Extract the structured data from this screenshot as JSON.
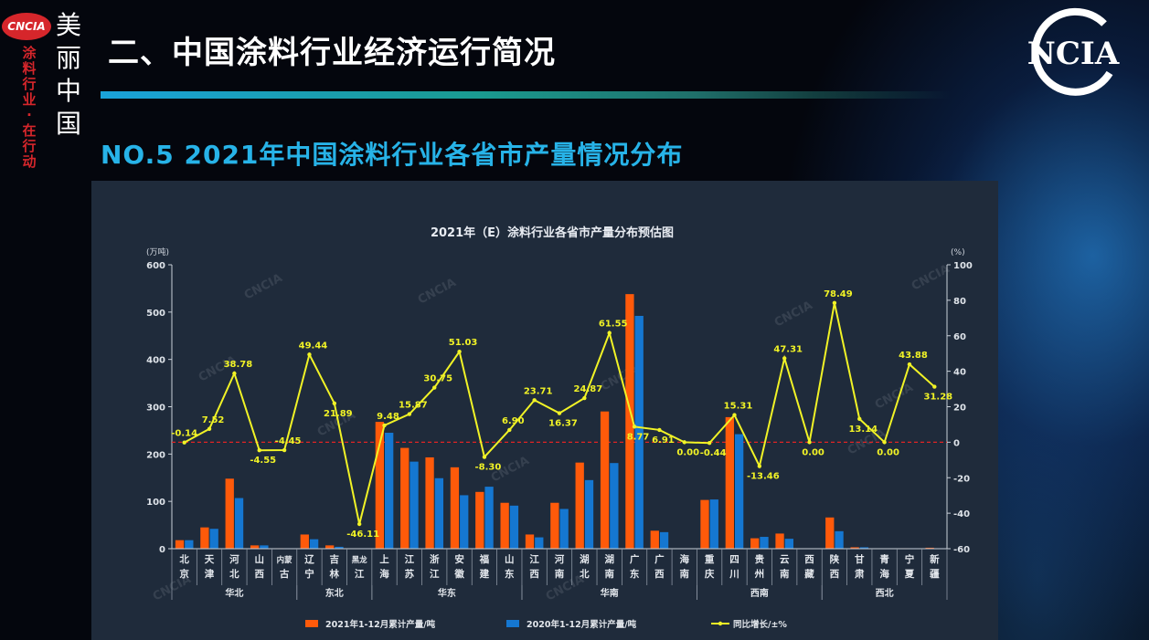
{
  "header": {
    "page_title": "二、中国涂料行业经济运行简况",
    "section_title": "NO.5 2021年中国涂料行业各省市产量情况分布",
    "logo_left_badge": "CNCIA",
    "logo_left_vertical": [
      "美",
      "丽",
      "中",
      "国"
    ],
    "logo_left_slogan": [
      "涂",
      "料",
      "行",
      "业",
      "·",
      "在",
      "行",
      "动"
    ],
    "logo_right_text": "NCIA"
  },
  "colors": {
    "bar_2021": "#ff5a0a",
    "bar_2020": "#1577d1",
    "line": "#f1f326",
    "zero_line": "#e02424",
    "panel_bg": "#1f2b3b"
  },
  "chart_data": {
    "type": "bar",
    "title": "2021年（E）涂料行业各省市产量分布预估图",
    "ylabel": "(万吨)",
    "y2label": "(%)",
    "ylim": [
      0,
      600
    ],
    "y_ticks": [
      0,
      100,
      200,
      300,
      400,
      500,
      600
    ],
    "y2lim": [
      -60,
      100
    ],
    "y2_ticks": [
      -60,
      -40,
      -20,
      0,
      20,
      40,
      60,
      80,
      100
    ],
    "watermark": "CNCIA",
    "categories": [
      [
        "北",
        "京"
      ],
      [
        "天",
        "津"
      ],
      [
        "河",
        "北"
      ],
      [
        "山",
        "西"
      ],
      [
        "内蒙",
        "古"
      ],
      [
        "辽",
        "宁"
      ],
      [
        "吉",
        "林"
      ],
      [
        "黑龙",
        "江"
      ],
      [
        "上",
        "海"
      ],
      [
        "江",
        "苏"
      ],
      [
        "浙",
        "江"
      ],
      [
        "安",
        "徽"
      ],
      [
        "福",
        "建"
      ],
      [
        "山",
        "东"
      ],
      [
        "江",
        "西"
      ],
      [
        "河",
        "南"
      ],
      [
        "湖",
        "北"
      ],
      [
        "湖",
        "南"
      ],
      [
        "广",
        "东"
      ],
      [
        "广",
        "西"
      ],
      [
        "海",
        "南"
      ],
      [
        "重",
        "庆"
      ],
      [
        "四",
        "川"
      ],
      [
        "贵",
        "州"
      ],
      [
        "云",
        "南"
      ],
      [
        "西",
        "藏"
      ],
      [
        "陕",
        "西"
      ],
      [
        "甘",
        "肃"
      ],
      [
        "青",
        "海"
      ],
      [
        "宁",
        "夏"
      ],
      [
        "新",
        "疆"
      ]
    ],
    "regions": [
      {
        "name": "华北",
        "start": 0,
        "end": 4
      },
      {
        "name": "东北",
        "start": 5,
        "end": 7
      },
      {
        "name": "华东",
        "start": 8,
        "end": 13
      },
      {
        "name": "华南",
        "start": 14,
        "end": 20
      },
      {
        "name": "西南",
        "start": 21,
        "end": 25
      },
      {
        "name": "西北",
        "start": 26,
        "end": 30
      }
    ],
    "series": [
      {
        "name": "2021年1-12月累计产量/吨",
        "kind": "bar",
        "values": [
          18,
          45,
          148,
          7,
          1,
          30,
          7,
          0.5,
          268,
          213,
          193,
          172,
          120,
          97,
          30,
          97,
          182,
          290,
          538,
          38,
          0.5,
          103,
          278,
          22,
          32,
          0.5,
          66,
          3,
          0.5,
          1,
          2
        ]
      },
      {
        "name": "2020年1-12月累计产量/吨",
        "kind": "bar",
        "values": [
          18,
          42,
          107,
          7,
          1,
          20,
          4,
          1,
          245,
          184,
          149,
          113,
          131,
          91,
          24,
          84,
          145,
          181,
          492,
          35,
          0.5,
          104,
          242,
          25,
          21,
          0.5,
          37,
          3,
          0.5,
          1,
          1
        ]
      },
      {
        "name": "同比增长/±%",
        "kind": "line",
        "axis": "right",
        "values": [
          -0.14,
          7.52,
          38.78,
          -4.55,
          -4.45,
          49.44,
          21.89,
          -46.11,
          9.48,
          15.87,
          30.75,
          51.03,
          -8.3,
          6.9,
          23.71,
          16.37,
          24.87,
          61.55,
          8.77,
          6.91,
          0.0,
          -0.44,
          15.31,
          -13.46,
          47.31,
          0.0,
          78.49,
          13.14,
          0.0,
          43.88,
          31.28
        ],
        "labels": [
          "-0.14",
          "7.52",
          "38.78",
          "-4.55",
          "-4.45",
          "49.44",
          "21.89",
          "-46.11",
          "9.48",
          "15.87",
          "30.75",
          "51.03",
          "-8.30",
          "6.90",
          "23.71",
          "16.37",
          "24.87",
          "61.55",
          "8.77",
          "6.91",
          "0.00",
          "-0.44",
          "15.31",
          "-13.46",
          "47.31",
          "0.00",
          "78.49",
          "13.14",
          "0.00",
          "43.88",
          "31.28"
        ]
      }
    ],
    "legend_position": "bottom"
  }
}
